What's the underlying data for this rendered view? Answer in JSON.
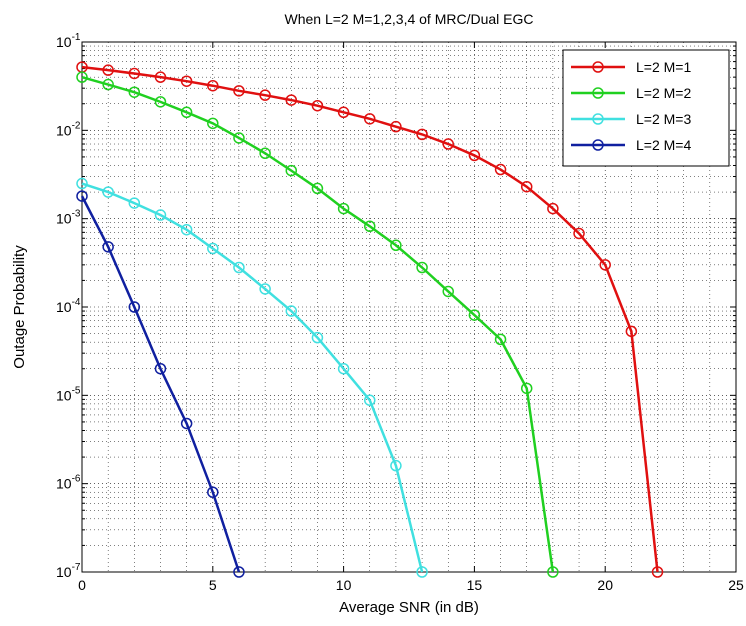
{
  "chart_data": {
    "type": "line",
    "title": "When L=2 M=1,2,3,4 of MRC/Dual EGC",
    "xlabel": "Average SNR (in dB)",
    "ylabel": "Outage Probability",
    "xlim": [
      0,
      25
    ],
    "ylim": [
      1e-07,
      0.1
    ],
    "yscale": "log",
    "grid": true,
    "legend_position": "top-right",
    "x_ticks": [
      "0",
      "5",
      "10",
      "15",
      "20",
      "25"
    ],
    "y_ticks": [
      {
        "base": "10",
        "exp": "-7"
      },
      {
        "base": "10",
        "exp": "-6"
      },
      {
        "base": "10",
        "exp": "-5"
      },
      {
        "base": "10",
        "exp": "-4"
      },
      {
        "base": "10",
        "exp": "-3"
      },
      {
        "base": "10",
        "exp": "-2"
      },
      {
        "base": "10",
        "exp": "-1"
      }
    ],
    "series": [
      {
        "name": "L=2 M=1",
        "color": "#e01010",
        "marker": "circle",
        "x": [
          0,
          1,
          2,
          3,
          4,
          5,
          6,
          7,
          8,
          9,
          10,
          11,
          12,
          13,
          14,
          15,
          16,
          17,
          18,
          19,
          20,
          21,
          22
        ],
        "y": [
          0.052,
          0.048,
          0.044,
          0.04,
          0.036,
          0.032,
          0.028,
          0.025,
          0.022,
          0.019,
          0.016,
          0.0135,
          0.011,
          0.009,
          0.007,
          0.0052,
          0.0036,
          0.0023,
          0.0013,
          0.00068,
          0.0003,
          5.3e-05,
          1e-07
        ]
      },
      {
        "name": "L=2 M=2",
        "color": "#20d020",
        "marker": "circle",
        "x": [
          0,
          1,
          2,
          3,
          4,
          5,
          6,
          7,
          8,
          9,
          10,
          11,
          12,
          13,
          14,
          15,
          16,
          17,
          18
        ],
        "y": [
          0.04,
          0.033,
          0.027,
          0.021,
          0.016,
          0.012,
          0.0082,
          0.0055,
          0.0035,
          0.0022,
          0.0013,
          0.00082,
          0.0005,
          0.00028,
          0.00015,
          8.1e-05,
          4.3e-05,
          1.2e-05,
          1e-07
        ]
      },
      {
        "name": "L=2 M=3",
        "color": "#40e0e0",
        "marker": "circle",
        "x": [
          0,
          1,
          2,
          3,
          4,
          5,
          6,
          7,
          8,
          9,
          10,
          11,
          12,
          13
        ],
        "y": [
          0.0025,
          0.002,
          0.0015,
          0.0011,
          0.00075,
          0.00046,
          0.00028,
          0.00016,
          9e-05,
          4.5e-05,
          2e-05,
          8.8e-06,
          1.6e-06,
          1e-07
        ]
      },
      {
        "name": "L=2 M=4",
        "color": "#1020a0",
        "marker": "circle",
        "x": [
          0,
          1,
          2,
          3,
          4,
          5,
          6
        ],
        "y": [
          0.0018,
          0.00048,
          0.0001,
          2e-05,
          4.8e-06,
          8e-07,
          1e-07
        ]
      }
    ]
  }
}
